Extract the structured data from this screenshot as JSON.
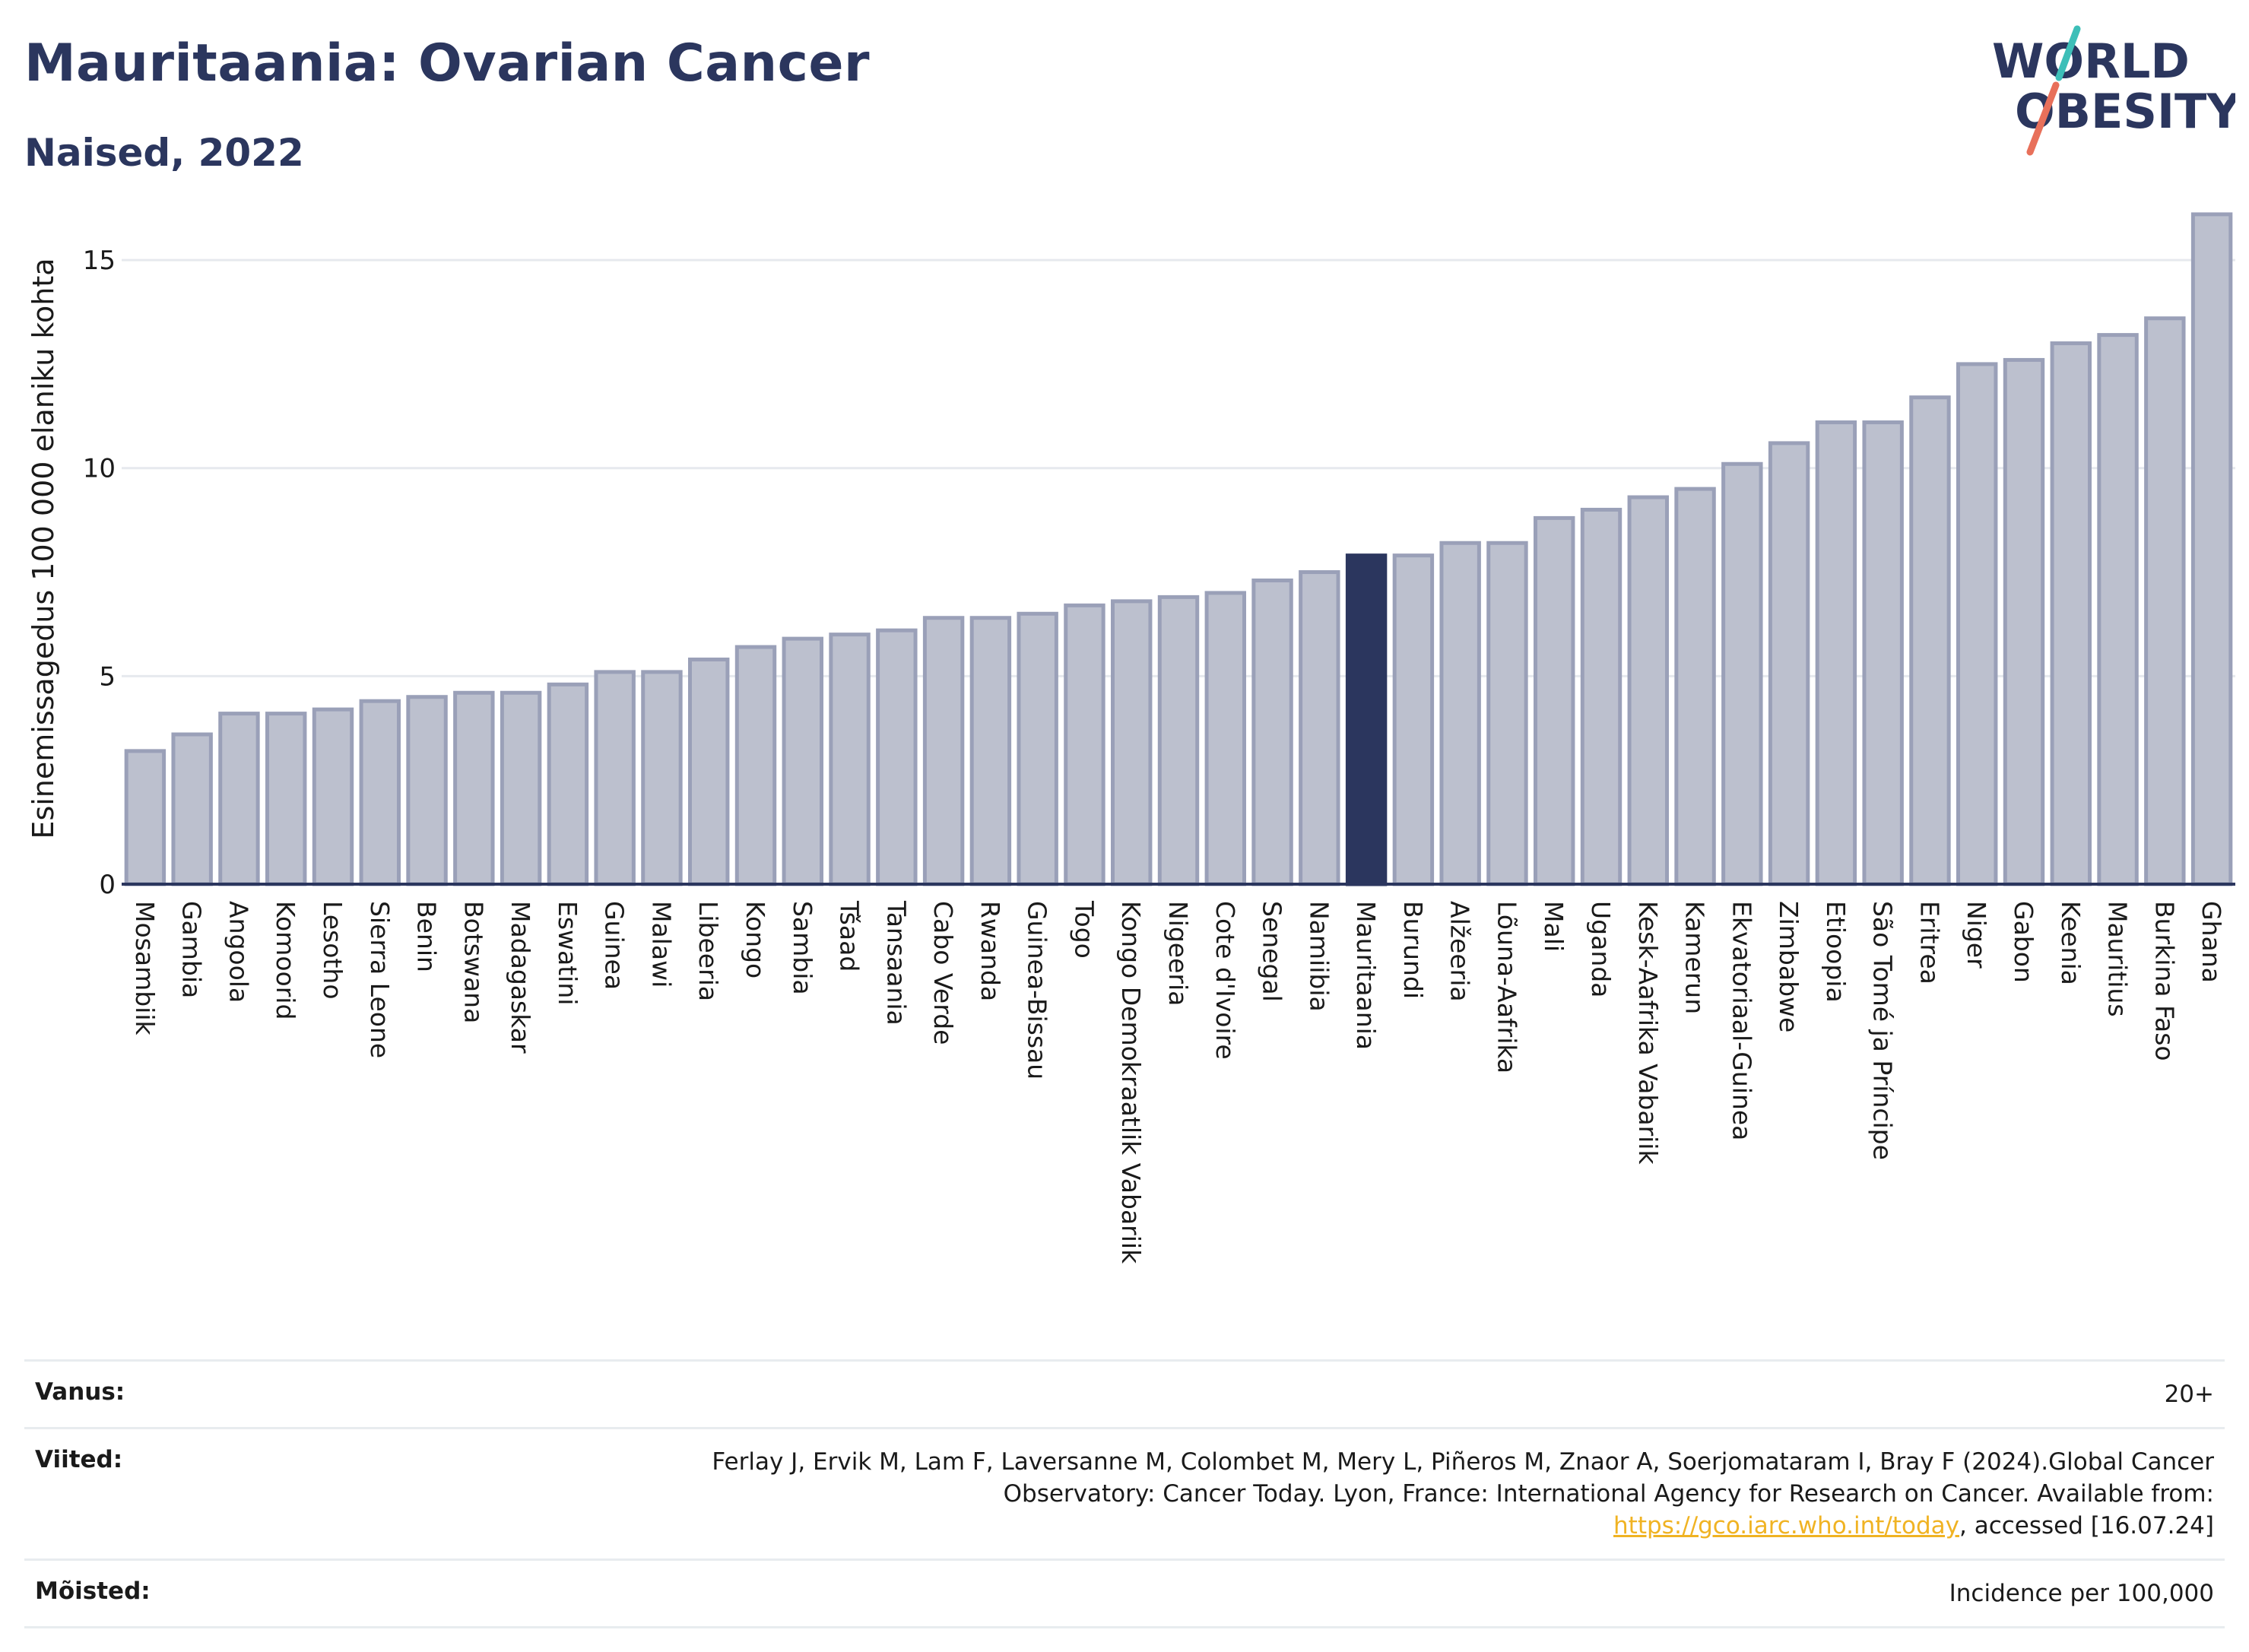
{
  "header": {
    "title": "Mauritaania: Ovarian Cancer",
    "subtitle": "Naised, 2022"
  },
  "logo": {
    "line1": "WORLD",
    "line2": "OBESITY",
    "text_color": "#2b365e",
    "slash_colors": [
      "#3dbfb8",
      "#e8705a"
    ]
  },
  "colors": {
    "bar_default": "#bcc0ce",
    "bar_outline": "#9aa0b8",
    "bar_highlight": "#2b365e",
    "grid": "#e6e9ee",
    "axis": "#2b365e"
  },
  "chart_data": {
    "type": "bar",
    "ylabel": "Esinemissagedus 100 000 elaniku kohta",
    "xlabel": "",
    "ylim": [
      0,
      16.5
    ],
    "yticks": [
      0,
      5,
      10,
      15
    ],
    "grid": true,
    "highlight": "Mauritaania",
    "categories": [
      "Mosambiik",
      "Gambia",
      "Angoola",
      "Komoorid",
      "Lesotho",
      "Sierra Leone",
      "Benin",
      "Botswana",
      "Madagaskar",
      "Eswatini",
      "Guinea",
      "Malawi",
      "Libeeria",
      "Kongo",
      "Sambia",
      "Tšaad",
      "Tansaania",
      "Cabo Verde",
      "Rwanda",
      "Guinea-Bissau",
      "Togo",
      "Kongo Demokraatlik Vabariik",
      "Nigeeria",
      "Cote d'Ivoire",
      "Senegal",
      "Namiibia",
      "Mauritaania",
      "Burundi",
      "Alžeeria",
      "Lõuna-Aafrika",
      "Mali",
      "Uganda",
      "Kesk-Aafrika Vabariik",
      "Kamerun",
      "Ekvatoriaal-Guinea",
      "Zimbabwe",
      "Etioopia",
      "São Tomé ja Príncipe",
      "Eritrea",
      "Niger",
      "Gabon",
      "Keenia",
      "Mauritius",
      "Burkina Faso",
      "Ghana"
    ],
    "values": [
      3.2,
      3.6,
      4.1,
      4.1,
      4.2,
      4.4,
      4.5,
      4.6,
      4.6,
      4.8,
      5.1,
      5.1,
      5.4,
      5.7,
      5.9,
      6.0,
      6.1,
      6.4,
      6.4,
      6.5,
      6.7,
      6.8,
      6.9,
      7.0,
      7.3,
      7.5,
      7.9,
      7.9,
      8.2,
      8.2,
      8.8,
      9.0,
      9.3,
      9.5,
      10.1,
      10.6,
      11.1,
      11.1,
      11.7,
      12.5,
      12.6,
      13.0,
      13.2,
      13.6,
      16.1
    ]
  },
  "footer": {
    "age_label": "Vanus:",
    "age_value": "20+",
    "refs_label": "Viited:",
    "refs_text": "Ferlay J, Ervik M, Lam F, Laversanne M, Colombet M, Mery L, Piñeros M, Znaor A, Soerjomataram I, Bray F (2024).Global Cancer Observatory: Cancer Today. Lyon, France: International Agency for Research on Cancer. Available from: ",
    "refs_link": "https://gco.iarc.who.int/today",
    "refs_suffix": ", accessed [16.07.24]",
    "defs_label": "Mõisted:",
    "defs_value": "Incidence per 100,000"
  }
}
